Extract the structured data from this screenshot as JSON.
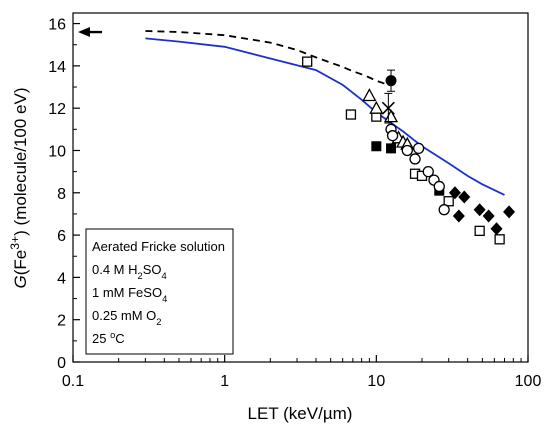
{
  "chart_data": {
    "type": "scatter",
    "x_scale": "log",
    "xlim": [
      0.1,
      100
    ],
    "ylim": [
      0,
      16.5
    ],
    "xlabel": "LET (keV/µm)",
    "xlabel_parts": [
      "LET (keV/",
      "µ",
      "m)"
    ],
    "ylabel": "G(Fe3+) (molecule/100 eV)",
    "ylabel_parts": [
      "G",
      "(Fe",
      "3+",
      ") (molecule/100 eV)"
    ],
    "x_ticks": [
      0.1,
      1,
      10,
      100
    ],
    "x_tick_labels": [
      "0.1",
      "1",
      "10",
      "100"
    ],
    "y_ticks": [
      0,
      2,
      4,
      6,
      8,
      10,
      12,
      14,
      16
    ],
    "y_tick_labels": [
      "0",
      "2",
      "4",
      "6",
      "8",
      "10",
      "12",
      "14",
      "16"
    ],
    "grid": false,
    "arrow_value": 15.6,
    "legend_box_lines": [
      [
        {
          "t": "Aerated Fricke solution"
        }
      ],
      [
        {
          "t": "0.4 M H"
        },
        {
          "t": "2",
          "sub": true
        },
        {
          "t": "SO"
        },
        {
          "t": "4",
          "sub": true
        }
      ],
      [
        {
          "t": "1 mM FeSO"
        },
        {
          "t": "4",
          "sub": true
        }
      ],
      [
        {
          "t": "0.25 mM O"
        },
        {
          "t": "2",
          "sub": true
        }
      ],
      [
        {
          "t": "25 "
        },
        {
          "t": "o",
          "sup": true
        },
        {
          "t": "C"
        }
      ]
    ],
    "colors": {
      "solid_line": "#1f2fcc",
      "dashed_line": "#000000",
      "markers": "#000000"
    },
    "series": [
      {
        "style": "solid_line",
        "x": [
          0.3,
          0.5,
          1,
          2,
          4,
          6,
          8,
          10,
          15,
          20,
          30,
          40,
          50,
          70
        ],
        "y": [
          15.3,
          15.15,
          14.9,
          14.35,
          13.8,
          13.1,
          12.4,
          11.8,
          10.9,
          10.2,
          9.4,
          8.8,
          8.4,
          7.9
        ]
      },
      {
        "style": "dashed_line",
        "x": [
          0.3,
          0.5,
          1,
          2,
          3,
          4,
          5,
          6,
          7,
          8,
          9,
          10,
          12
        ],
        "y": [
          15.65,
          15.6,
          15.45,
          15.1,
          14.75,
          14.4,
          14.15,
          13.95,
          13.75,
          13.6,
          13.45,
          13.3,
          13.1
        ]
      },
      {
        "marker": "open_square",
        "x": [
          3.5,
          6.8,
          10.0,
          18.0,
          20.0,
          30.0,
          48.0,
          65.0
        ],
        "y": [
          14.2,
          11.7,
          11.6,
          8.9,
          8.8,
          7.6,
          6.2,
          5.8
        ]
      },
      {
        "marker": "filled_square",
        "x": [
          10.0,
          12.5,
          26.0
        ],
        "y": [
          10.2,
          10.1,
          8.1
        ]
      },
      {
        "marker": "open_triangle",
        "x": [
          9.0,
          10.0,
          12.5,
          14.0,
          15.0,
          16.0
        ],
        "y": [
          12.6,
          12.0,
          11.6,
          10.6,
          10.4,
          10.3
        ]
      },
      {
        "marker": "filled_circle",
        "x": [
          12.5
        ],
        "y": [
          13.3
        ],
        "err": [
          0.5
        ]
      },
      {
        "marker": "cross",
        "x": [
          12.0
        ],
        "y": [
          12.0
        ],
        "err": [
          0.7
        ]
      },
      {
        "marker": "open_circle",
        "x": [
          12.5,
          12.8,
          16.0,
          18.0,
          19.0,
          22.0,
          24.0,
          26.0,
          28.0
        ],
        "y": [
          11.0,
          10.7,
          10.0,
          9.6,
          10.1,
          9.0,
          8.6,
          8.3,
          7.2
        ]
      },
      {
        "marker": "filled_diamond",
        "x": [
          33.0,
          35.0,
          38.0,
          48.0,
          55.0,
          62.0,
          75.0
        ],
        "y": [
          8.0,
          6.9,
          7.8,
          7.2,
          6.9,
          6.3,
          7.1
        ]
      }
    ]
  }
}
